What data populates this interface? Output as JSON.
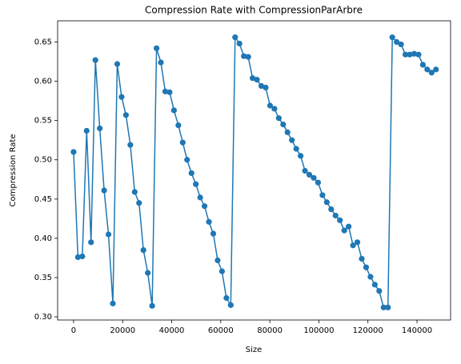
{
  "chart_data": {
    "type": "line",
    "title": "Compression Rate with CompressionParArbre",
    "x_label": "Size",
    "y_label": "Compression Rate",
    "x": [
      0,
      1780,
      3560,
      5340,
      7120,
      8900,
      10680,
      12460,
      14240,
      16020,
      17800,
      19580,
      21360,
      23140,
      24920,
      26700,
      28480,
      30260,
      32040,
      33820,
      35600,
      37380,
      39160,
      40940,
      42720,
      44500,
      46280,
      48060,
      49840,
      51620,
      53400,
      55180,
      56960,
      58740,
      60520,
      62300,
      64080,
      65860,
      67640,
      69420,
      71200,
      72980,
      74760,
      76540,
      78320,
      80100,
      81880,
      83660,
      85440,
      87220,
      89000,
      90780,
      92560,
      94340,
      96120,
      97900,
      99680,
      101460,
      103240,
      105020,
      106800,
      108580,
      110360,
      112140,
      113920,
      115700,
      117480,
      119260,
      121040,
      122820,
      124600,
      126380,
      128160,
      129940,
      131720,
      133500,
      135280,
      137060,
      138840,
      140620,
      142400,
      144180,
      145960,
      147740
    ],
    "series": [
      {
        "name": "CompressionParArbre",
        "color": "#1f77b4",
        "values": [
          0.51,
          0.376,
          0.377,
          0.537,
          0.395,
          0.627,
          0.54,
          0.461,
          0.405,
          0.317,
          0.622,
          0.58,
          0.557,
          0.519,
          0.459,
          0.445,
          0.385,
          0.356,
          0.314,
          0.642,
          0.624,
          0.587,
          0.586,
          0.563,
          0.544,
          0.522,
          0.5,
          0.483,
          0.469,
          0.452,
          0.441,
          0.421,
          0.406,
          0.372,
          0.358,
          0.324,
          0.315,
          0.656,
          0.648,
          0.632,
          0.631,
          0.604,
          0.602,
          0.594,
          0.592,
          0.569,
          0.565,
          0.553,
          0.545,
          0.535,
          0.525,
          0.514,
          0.505,
          0.486,
          0.481,
          0.477,
          0.471,
          0.455,
          0.446,
          0.437,
          0.429,
          0.423,
          0.41,
          0.415,
          0.391,
          0.395,
          0.374,
          0.363,
          0.351,
          0.341,
          0.333,
          0.312,
          0.312,
          0.656,
          0.65,
          0.647,
          0.634,
          0.634,
          0.635,
          0.634,
          0.621,
          0.615,
          0.611,
          0.615
        ]
      }
    ],
    "xlim": [
      -6500,
      153700
    ],
    "ylim": [
      0.296,
      0.677
    ],
    "xticks": [
      0,
      20000,
      40000,
      60000,
      80000,
      100000,
      120000,
      140000
    ],
    "yticks": [
      {
        "value": 0.3,
        "label": "0.30"
      },
      0.35,
      {
        "value": 0.4,
        "label": "0.40"
      },
      0.45,
      {
        "value": 0.5,
        "label": "0.50"
      },
      0.55,
      {
        "value": 0.6,
        "label": "0.60"
      },
      0.65
    ],
    "grid": false
  }
}
